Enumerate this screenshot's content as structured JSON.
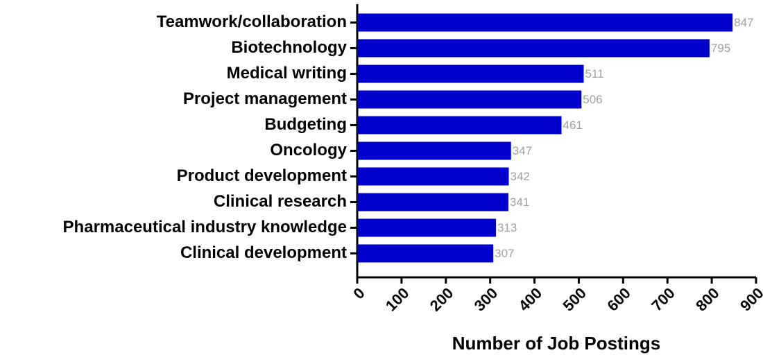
{
  "chart_data": {
    "type": "barh",
    "x_label": "Number of Job Postings",
    "categories": [
      "Teamwork/collaboration",
      "Biotechnology",
      "Medical writing",
      "Project management",
      "Budgeting",
      "Oncology",
      "Product development",
      "Clinical research",
      "Pharmaceutical industry knowledge",
      "Clinical development"
    ],
    "values": [
      847,
      795,
      511,
      506,
      461,
      347,
      342,
      341,
      313,
      307
    ],
    "color": "#0000cc",
    "xlim": [
      0,
      900
    ],
    "xticks": [
      0,
      100,
      200,
      300,
      400,
      500,
      600,
      700,
      800,
      900
    ]
  }
}
